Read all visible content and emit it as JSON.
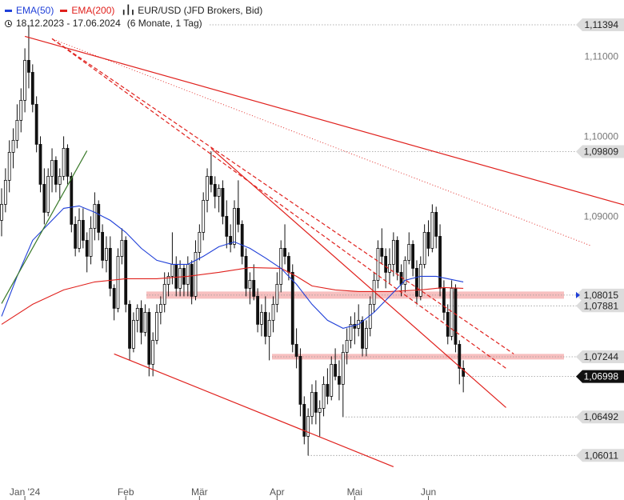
{
  "legend": {
    "ema50_label": "EMA(50)",
    "ema50_color": "#1f3fd8",
    "ema200_label": "EMA(200)",
    "ema200_color": "#e0201c",
    "instrument": "EUR/USD (JFD Brokers, Bid)",
    "range": "18.12.2023 - 17.06.2024",
    "period": "(6 Monate, 1 Tag)",
    "candle_icon": "candlestick-icon",
    "clock_icon": "clock-icon"
  },
  "chart_data": {
    "type": "candlestick",
    "instrument": "EUR/USD (JFD Brokers, Bid)",
    "x_tick_labels": [
      "Jan '24",
      "Feb",
      "Mär",
      "Apr",
      "Mai",
      "Jun"
    ],
    "y_tick_labels": [
      "1,11000",
      "1,10000",
      "1,09000"
    ],
    "ylim": [
      1.059,
      1.1155
    ],
    "price_levels": [
      {
        "value": 1.11394,
        "label": "1,11394",
        "style": "label"
      },
      {
        "value": 1.09809,
        "label": "1,09809",
        "style": "label"
      },
      {
        "value": 1.08015,
        "label": "1,08015",
        "style": "label"
      },
      {
        "value": 1.07881,
        "label": "1,07881",
        "style": "label"
      },
      {
        "value": 1.07244,
        "label": "1,07244",
        "style": "label"
      },
      {
        "value": 1.06998,
        "label": "1,06998",
        "style": "current"
      },
      {
        "value": 1.06492,
        "label": "1,06492",
        "style": "label"
      },
      {
        "value": 1.06011,
        "label": "1,06011",
        "style": "label"
      }
    ],
    "zones": [
      {
        "from": 1.0797,
        "to": 1.0806
      },
      {
        "from": 1.0721,
        "to": 1.0728
      }
    ],
    "candles": [
      [
        1.0895,
        1.0935,
        1.0875,
        1.0915
      ],
      [
        1.0915,
        1.096,
        1.0905,
        1.0945
      ],
      [
        1.0945,
        1.0995,
        1.093,
        1.098
      ],
      [
        1.098,
        1.101,
        1.096,
        1.0995
      ],
      [
        1.0995,
        1.104,
        1.0985,
        1.102
      ],
      [
        1.102,
        1.106,
        1.1005,
        1.1045
      ],
      [
        1.1045,
        1.111,
        1.103,
        1.1095
      ],
      [
        1.1095,
        1.1139,
        1.106,
        1.108
      ],
      [
        1.108,
        1.109,
        1.103,
        1.104
      ],
      [
        1.104,
        1.105,
        1.098,
        1.099
      ],
      [
        1.099,
        1.1,
        1.093,
        1.094
      ],
      [
        1.094,
        1.096,
        1.089,
        1.0905
      ],
      [
        1.0905,
        1.096,
        1.09,
        1.095
      ],
      [
        1.095,
        1.0985,
        1.093,
        1.097
      ],
      [
        1.097,
        1.0975,
        1.093,
        1.094
      ],
      [
        1.094,
        1.096,
        1.092,
        1.095
      ],
      [
        1.095,
        1.1,
        1.0945,
        1.0985
      ],
      [
        1.0985,
        1.099,
        1.094,
        1.095
      ],
      [
        1.095,
        1.0955,
        1.088,
        1.089
      ],
      [
        1.089,
        1.09,
        1.085,
        1.086
      ],
      [
        1.086,
        1.091,
        1.0855,
        1.0895
      ],
      [
        1.0895,
        1.091,
        1.086,
        1.087
      ],
      [
        1.087,
        1.088,
        1.083,
        1.085
      ],
      [
        1.085,
        1.09,
        1.084,
        1.0885
      ],
      [
        1.0885,
        1.093,
        1.087,
        1.0915
      ],
      [
        1.0915,
        1.092,
        1.087,
        1.088
      ],
      [
        1.088,
        1.089,
        1.0835,
        1.0845
      ],
      [
        1.0845,
        1.0875,
        1.083,
        1.086
      ],
      [
        1.086,
        1.0875,
        1.08,
        1.081
      ],
      [
        1.081,
        1.0815,
        1.077,
        1.0785
      ],
      [
        1.0785,
        1.086,
        1.078,
        1.085
      ],
      [
        1.085,
        1.0885,
        1.084,
        1.087
      ],
      [
        1.087,
        1.0875,
        1.078,
        1.079
      ],
      [
        1.079,
        1.0795,
        1.072,
        1.0735
      ],
      [
        1.0735,
        1.078,
        1.073,
        1.077
      ],
      [
        1.077,
        1.079,
        1.0755,
        1.0785
      ],
      [
        1.0785,
        1.0795,
        1.074,
        1.0755
      ],
      [
        1.0755,
        1.079,
        1.075,
        1.078
      ],
      [
        1.078,
        1.0785,
        1.07,
        1.0715
      ],
      [
        1.0715,
        1.0755,
        1.07,
        1.0745
      ],
      [
        1.0745,
        1.079,
        1.074,
        1.078
      ],
      [
        1.078,
        1.08,
        1.0765,
        1.079
      ],
      [
        1.079,
        1.083,
        1.078,
        1.0815
      ],
      [
        1.0815,
        1.083,
        1.08,
        1.0825
      ],
      [
        1.0825,
        1.088,
        1.0815,
        1.084
      ],
      [
        1.084,
        1.085,
        1.08,
        1.081
      ],
      [
        1.081,
        1.0845,
        1.08,
        1.0835
      ],
      [
        1.0835,
        1.084,
        1.08,
        1.0815
      ],
      [
        1.0815,
        1.085,
        1.08,
        1.084
      ],
      [
        1.084,
        1.0845,
        1.079,
        1.08
      ],
      [
        1.08,
        1.087,
        1.0795,
        1.0855
      ],
      [
        1.0855,
        1.089,
        1.0845,
        1.088
      ],
      [
        1.088,
        1.093,
        1.087,
        1.092
      ],
      [
        1.092,
        1.096,
        1.0905,
        1.095
      ],
      [
        1.095,
        1.0981,
        1.093,
        1.094
      ],
      [
        1.094,
        1.095,
        1.091,
        1.0925
      ],
      [
        1.0925,
        1.094,
        1.0905,
        1.0935
      ],
      [
        1.0935,
        1.0945,
        1.089,
        1.09
      ],
      [
        1.09,
        1.092,
        1.086,
        1.0875
      ],
      [
        1.0875,
        1.089,
        1.0855,
        1.0865
      ],
      [
        1.0865,
        1.092,
        1.086,
        1.091
      ],
      [
        1.091,
        1.0945,
        1.088,
        1.089
      ],
      [
        1.089,
        1.0895,
        1.084,
        1.085
      ],
      [
        1.085,
        1.086,
        1.08,
        1.081
      ],
      [
        1.081,
        1.083,
        1.079,
        1.082
      ],
      [
        1.082,
        1.084,
        1.0795,
        1.08
      ],
      [
        1.08,
        1.081,
        1.0755,
        1.0765
      ],
      [
        1.0765,
        1.079,
        1.075,
        1.078
      ],
      [
        1.078,
        1.08,
        1.074,
        1.075
      ],
      [
        1.075,
        1.078,
        1.072,
        1.077
      ],
      [
        1.077,
        1.08,
        1.0755,
        1.079
      ],
      [
        1.079,
        1.083,
        1.078,
        1.0815
      ],
      [
        1.0815,
        1.087,
        1.0805,
        1.086
      ],
      [
        1.086,
        1.089,
        1.084,
        1.085
      ],
      [
        1.085,
        1.0855,
        1.082,
        1.083
      ],
      [
        1.083,
        1.084,
        1.073,
        1.074
      ],
      [
        1.074,
        1.076,
        1.071,
        1.0725
      ],
      [
        1.0725,
        1.0735,
        1.065,
        1.0665
      ],
      [
        1.0665,
        1.0675,
        1.0615,
        1.0625
      ],
      [
        1.0625,
        1.066,
        1.0601,
        1.065
      ],
      [
        1.065,
        1.069,
        1.064,
        1.068
      ],
      [
        1.068,
        1.0695,
        1.064,
        1.0655
      ],
      [
        1.0655,
        1.067,
        1.0625,
        1.066
      ],
      [
        1.066,
        1.07,
        1.065,
        1.069
      ],
      [
        1.069,
        1.071,
        1.0665,
        1.0675
      ],
      [
        1.0675,
        1.0725,
        1.067,
        1.0715
      ],
      [
        1.0715,
        1.0735,
        1.0695,
        1.07
      ],
      [
        1.07,
        1.072,
        1.067,
        1.069
      ],
      [
        1.069,
        1.074,
        1.0649,
        1.073
      ],
      [
        1.073,
        1.076,
        1.0715,
        1.0745
      ],
      [
        1.0745,
        1.0775,
        1.0735,
        1.0765
      ],
      [
        1.0765,
        1.078,
        1.074,
        1.076
      ],
      [
        1.076,
        1.079,
        1.075,
        1.077
      ],
      [
        1.077,
        1.0775,
        1.0725,
        1.0735
      ],
      [
        1.0735,
        1.077,
        1.0725,
        1.076
      ],
      [
        1.076,
        1.08,
        1.075,
        1.079
      ],
      [
        1.079,
        1.083,
        1.078,
        1.082
      ],
      [
        1.082,
        1.087,
        1.081,
        1.086
      ],
      [
        1.086,
        1.0885,
        1.084,
        1.085
      ],
      [
        1.085,
        1.086,
        1.081,
        1.083
      ],
      [
        1.083,
        1.086,
        1.0815,
        1.084
      ],
      [
        1.084,
        1.088,
        1.0825,
        1.087
      ],
      [
        1.087,
        1.0875,
        1.082,
        1.083
      ],
      [
        1.083,
        1.084,
        1.08,
        1.0815
      ],
      [
        1.0815,
        1.085,
        1.0805,
        1.0845
      ],
      [
        1.0845,
        1.088,
        1.084,
        1.0865
      ],
      [
        1.0865,
        1.087,
        1.0825,
        1.0835
      ],
      [
        1.0835,
        1.0845,
        1.079,
        1.08
      ],
      [
        1.08,
        1.085,
        1.0795,
        1.084
      ],
      [
        1.084,
        1.089,
        1.0835,
        1.088
      ],
      [
        1.088,
        1.0895,
        1.085,
        1.086
      ],
      [
        1.086,
        1.0915,
        1.0855,
        1.0905
      ],
      [
        1.0905,
        1.0912,
        1.086,
        1.0875
      ],
      [
        1.0875,
        1.089,
        1.08,
        1.081
      ],
      [
        1.081,
        1.082,
        1.077,
        1.078
      ],
      [
        1.078,
        1.079,
        1.074,
        1.075
      ],
      [
        1.075,
        1.082,
        1.0745,
        1.081
      ],
      [
        1.081,
        1.0815,
        1.073,
        1.074
      ],
      [
        1.074,
        1.0745,
        1.069,
        1.071
      ],
      [
        1.071,
        1.072,
        1.068,
        1.07
      ]
    ],
    "ema50": [
      [
        0,
        1.0775
      ],
      [
        4,
        1.0825
      ],
      [
        8,
        1.087
      ],
      [
        12,
        1.089
      ],
      [
        16,
        1.091
      ],
      [
        20,
        1.0913
      ],
      [
        24,
        1.0905
      ],
      [
        28,
        1.0895
      ],
      [
        32,
        1.088
      ],
      [
        36,
        1.086
      ],
      [
        40,
        1.0845
      ],
      [
        44,
        1.084
      ],
      [
        48,
        1.084
      ],
      [
        52,
        1.085
      ],
      [
        56,
        1.0862
      ],
      [
        60,
        1.0868
      ],
      [
        64,
        1.086
      ],
      [
        68,
        1.0848
      ],
      [
        72,
        1.0835
      ],
      [
        76,
        1.0815
      ],
      [
        80,
        1.079
      ],
      [
        84,
        1.077
      ],
      [
        88,
        1.076
      ],
      [
        92,
        1.0765
      ],
      [
        96,
        1.078
      ],
      [
        100,
        1.08
      ],
      [
        104,
        1.082
      ],
      [
        108,
        1.0825
      ],
      [
        112,
        1.0825
      ],
      [
        116,
        1.0821
      ],
      [
        119,
        1.0818
      ]
    ],
    "ema200": [
      [
        0,
        1.0765
      ],
      [
        8,
        1.079
      ],
      [
        16,
        1.0808
      ],
      [
        24,
        1.0818
      ],
      [
        32,
        1.0822
      ],
      [
        40,
        1.0822
      ],
      [
        48,
        1.0825
      ],
      [
        56,
        1.083
      ],
      [
        64,
        1.0836
      ],
      [
        72,
        1.0835
      ],
      [
        76,
        1.0825
      ],
      [
        80,
        1.0813
      ],
      [
        86,
        1.0808
      ],
      [
        92,
        1.0806
      ],
      [
        100,
        1.0806
      ],
      [
        108,
        1.0808
      ],
      [
        114,
        1.0811
      ],
      [
        119,
        1.081
      ]
    ],
    "trendlines": [
      {
        "color": "#e0201c",
        "style": "solid",
        "from": [
          6,
          1.1125
        ],
        "to": [
          165,
          1.0908
        ]
      },
      {
        "color": "#e0201c",
        "style": "dotted",
        "from": [
          14,
          1.112
        ],
        "to": [
          152,
          1.0863
        ]
      },
      {
        "color": "#e0201c",
        "style": "dashed",
        "from": [
          13,
          1.1122
        ],
        "to": [
          132,
          1.0728
        ]
      },
      {
        "color": "#e0201c",
        "style": "dashed",
        "from": [
          13,
          1.1122
        ],
        "to": [
          130,
          1.071
        ]
      },
      {
        "color": "#e0201c",
        "style": "solid",
        "from": [
          54,
          1.0985
        ],
        "to": [
          130,
          1.0661
        ]
      },
      {
        "color": "#e0201c",
        "style": "solid",
        "from": [
          29,
          1.0728
        ],
        "to": [
          101,
          1.0587
        ]
      },
      {
        "color": "#3a7a2a",
        "style": "solid",
        "from": [
          0,
          1.0791
        ],
        "to": [
          22,
          1.0982
        ]
      }
    ]
  }
}
